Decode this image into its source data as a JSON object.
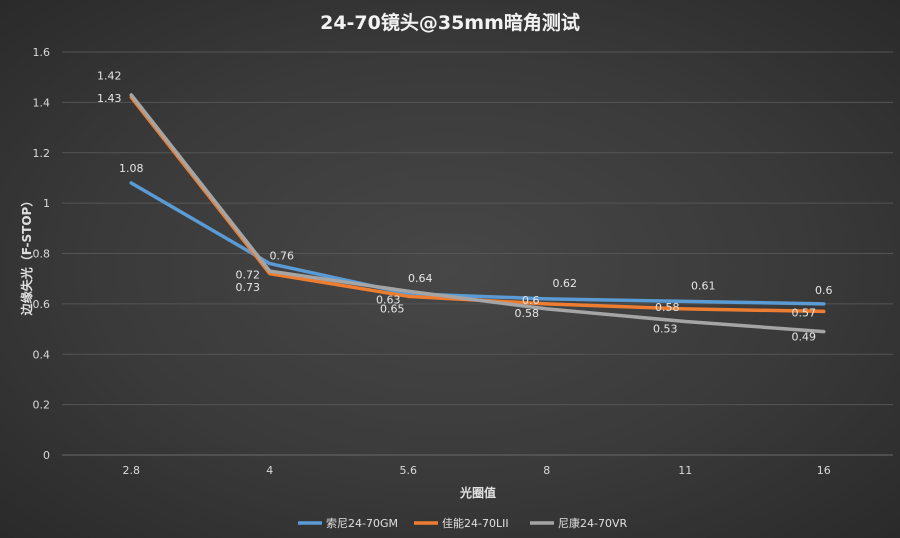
{
  "chart_data": {
    "type": "line",
    "title": "24-70镜头@35mm暗角测试",
    "xlabel": "光圈值",
    "ylabel": "边缘失光（F-STOP）",
    "categories": [
      "2.8",
      "4",
      "5.6",
      "8",
      "11",
      "16"
    ],
    "ylim": [
      0,
      1.6
    ],
    "yticks": [
      "0",
      "0.2",
      "0.4",
      "0.6",
      "0.8",
      "1",
      "1.2",
      "1.4",
      "1.6"
    ],
    "grid": true,
    "legend": "bottom",
    "series": [
      {
        "name": "索尼24-70GM",
        "color": "#5b9bd5",
        "values": [
          1.08,
          0.76,
          0.64,
          0.62,
          0.61,
          0.6
        ],
        "labels": [
          "1.08",
          "0.76",
          "0.64",
          "0.62",
          "0.61",
          "0.6"
        ]
      },
      {
        "name": "佳能24-70LII",
        "color": "#ed7d31",
        "values": [
          1.42,
          0.72,
          0.63,
          0.6,
          0.58,
          0.57
        ],
        "labels": [
          "1.42",
          "0.72",
          "0.63",
          "0.6",
          "0.58",
          "0.57"
        ]
      },
      {
        "name": "尼康24-70VR",
        "color": "#a5a5a5",
        "values": [
          1.43,
          0.73,
          0.65,
          0.58,
          0.53,
          0.49
        ],
        "labels": [
          "1.43",
          "0.73",
          "0.65",
          "0.58",
          "0.53",
          "0.49"
        ]
      }
    ]
  }
}
